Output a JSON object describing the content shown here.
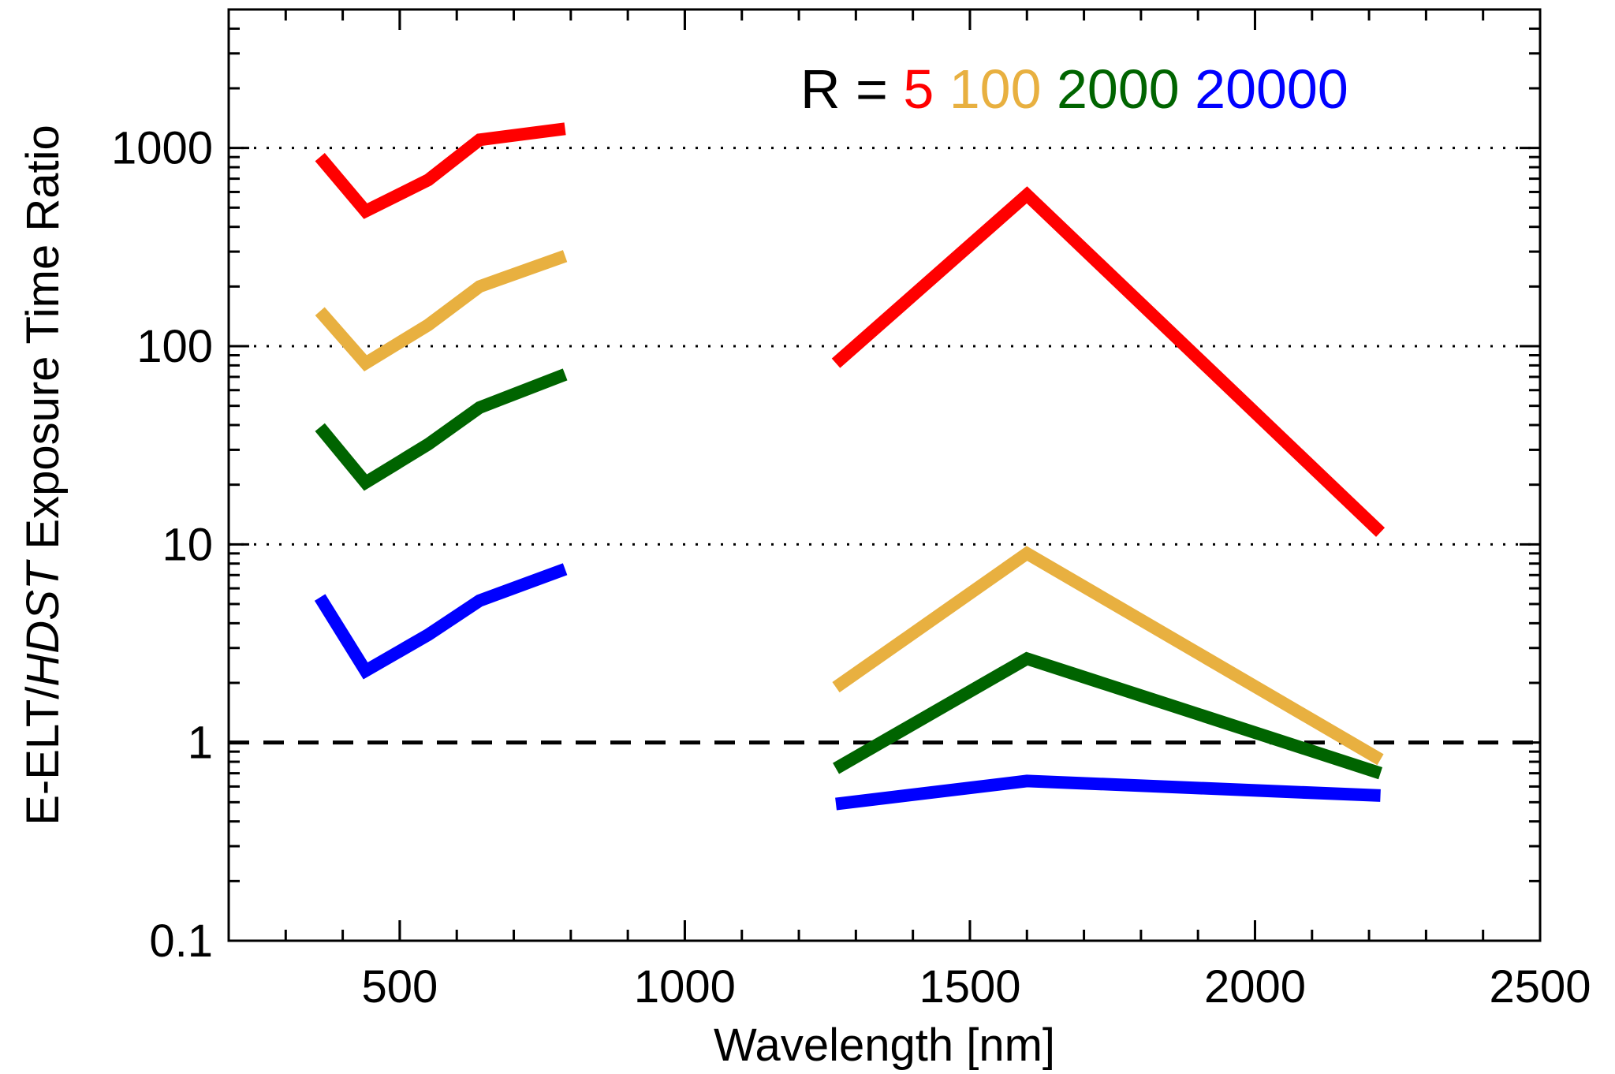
{
  "chart_data": {
    "type": "line",
    "xlabel": "Wavelength [nm]",
    "ylabel": {
      "prefix": "E-ELT/",
      "italic": "HDST",
      "suffix": " Exposure Time Ratio"
    },
    "xlim": [
      200,
      2500
    ],
    "ylim": [
      0.1,
      5000
    ],
    "yscale": "log",
    "x_ticks": [
      500,
      1000,
      1500,
      2000,
      2500
    ],
    "y_ticks": [
      {
        "value": 0.1,
        "label": "0.1"
      },
      {
        "value": 1,
        "label": "1"
      },
      {
        "value": 10,
        "label": "10"
      },
      {
        "value": 100,
        "label": "100"
      },
      {
        "value": 1000,
        "label": "1000"
      }
    ],
    "dotted_gridlines": [
      10,
      100,
      1000
    ],
    "reference_line": {
      "y": 1,
      "style": "dashed"
    },
    "legend": {
      "prefix": "R =",
      "placement": "top-right",
      "entries": [
        "5",
        "100",
        "2000",
        "20000"
      ]
    },
    "series": [
      {
        "name": "5",
        "color": "#ff0000",
        "segments": [
          {
            "x": [
              360,
              440,
              550,
              640,
              790
            ],
            "y": [
              900,
              480,
              690,
              1100,
              1250
            ]
          },
          {
            "x": [
              1265,
              1600,
              2220
            ],
            "y": [
              82,
              580,
              11.5
            ]
          }
        ]
      },
      {
        "name": "100",
        "color": "#e8b040",
        "segments": [
          {
            "x": [
              360,
              440,
              550,
              640,
              790
            ],
            "y": [
              150,
              82,
              128,
              200,
              285
            ]
          },
          {
            "x": [
              1265,
              1600,
              2220
            ],
            "y": [
              1.9,
              9,
              0.82
            ]
          }
        ]
      },
      {
        "name": "2000",
        "color": "#006400",
        "segments": [
          {
            "x": [
              360,
              440,
              550,
              640,
              790
            ],
            "y": [
              39,
              20.5,
              32,
              49,
              72
            ]
          },
          {
            "x": [
              1265,
              1600,
              2220
            ],
            "y": [
              0.74,
              2.65,
              0.7
            ]
          }
        ]
      },
      {
        "name": "20000",
        "color": "#0000ff",
        "segments": [
          {
            "x": [
              360,
              440,
              550,
              640,
              790
            ],
            "y": [
              5.4,
              2.3,
              3.5,
              5.2,
              7.5
            ]
          },
          {
            "x": [
              1265,
              1600,
              2220
            ],
            "y": [
              0.49,
              0.64,
              0.54
            ]
          }
        ]
      }
    ],
    "legend_prefix_color": "#000000"
  }
}
